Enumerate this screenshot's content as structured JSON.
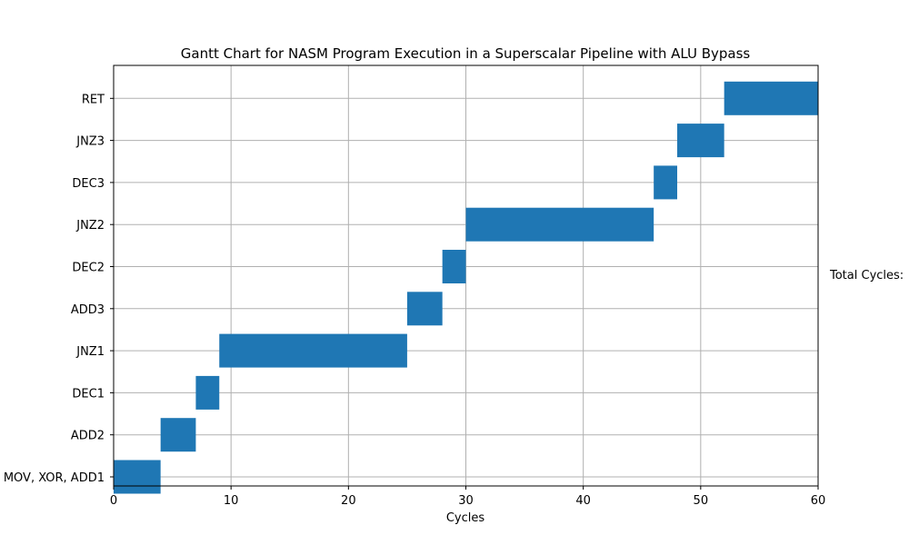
{
  "chart_data": {
    "type": "gantt",
    "title": "Gantt Chart for NASM Program Execution in a Superscalar Pipeline with ALU Bypass",
    "xlabel": "Cycles",
    "ylabel": "",
    "xlim": [
      0,
      60
    ],
    "xticks": [
      0,
      10,
      20,
      30,
      40,
      50,
      60
    ],
    "grid": true,
    "bar_color": "#1f77b4",
    "tasks": [
      {
        "label": "MOV, XOR, ADD1",
        "start": 0,
        "end": 4
      },
      {
        "label": "ADD2",
        "start": 4,
        "end": 7
      },
      {
        "label": "DEC1",
        "start": 7,
        "end": 9
      },
      {
        "label": "JNZ1",
        "start": 9,
        "end": 25
      },
      {
        "label": "ADD3",
        "start": 25,
        "end": 28
      },
      {
        "label": "DEC2",
        "start": 28,
        "end": 30
      },
      {
        "label": "JNZ2",
        "start": 30,
        "end": 46
      },
      {
        "label": "DEC3",
        "start": 46,
        "end": 48
      },
      {
        "label": "JNZ3",
        "start": 48,
        "end": 52
      },
      {
        "label": "RET",
        "start": 52,
        "end": 60
      }
    ],
    "annotation": "Total Cycles:"
  }
}
